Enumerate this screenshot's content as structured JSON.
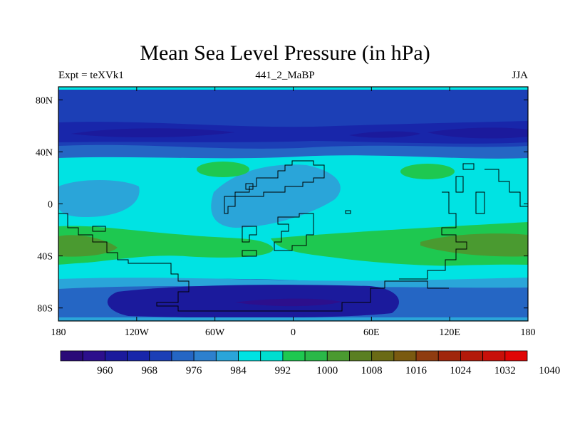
{
  "title": "Mean Sea Level Pressure (in hPa)",
  "left_label": "Expt = teXVk1",
  "center_label": "441_2_MaBP",
  "right_label": "JJA",
  "map": {
    "lon_range": [
      -180,
      180
    ],
    "lat_range": [
      -90,
      90
    ],
    "lon_ticks": [
      {
        "value": -180,
        "label": "180"
      },
      {
        "value": -120,
        "label": "120W"
      },
      {
        "value": -60,
        "label": "60W"
      },
      {
        "value": 0,
        "label": "0"
      },
      {
        "value": 60,
        "label": "60E"
      },
      {
        "value": 120,
        "label": "120E"
      },
      {
        "value": 180,
        "label": "180"
      }
    ],
    "lat_ticks": [
      {
        "value": 80,
        "label": "80N"
      },
      {
        "value": 40,
        "label": "40N"
      },
      {
        "value": 0,
        "label": "0"
      },
      {
        "value": -40,
        "label": "40S"
      },
      {
        "value": -80,
        "label": "80S"
      }
    ]
  },
  "colorbar": {
    "colors": [
      "#2a0a78",
      "#2c0f8c",
      "#1b1a9c",
      "#1826aa",
      "#1c3fb6",
      "#2566c4",
      "#2d80ce",
      "#2aa5d9",
      "#00e3e3",
      "#00ded0",
      "#1ec850",
      "#2ab848",
      "#4a9a30",
      "#5a7f22",
      "#6a6a15",
      "#7a5a10",
      "#8f3c10",
      "#a0260c",
      "#b31a0a",
      "#c8100a",
      "#e00505"
    ],
    "labels": [
      "960",
      "968",
      "976",
      "984",
      "992",
      "1000",
      "1008",
      "1016",
      "1024",
      "1032",
      "1040"
    ]
  }
}
